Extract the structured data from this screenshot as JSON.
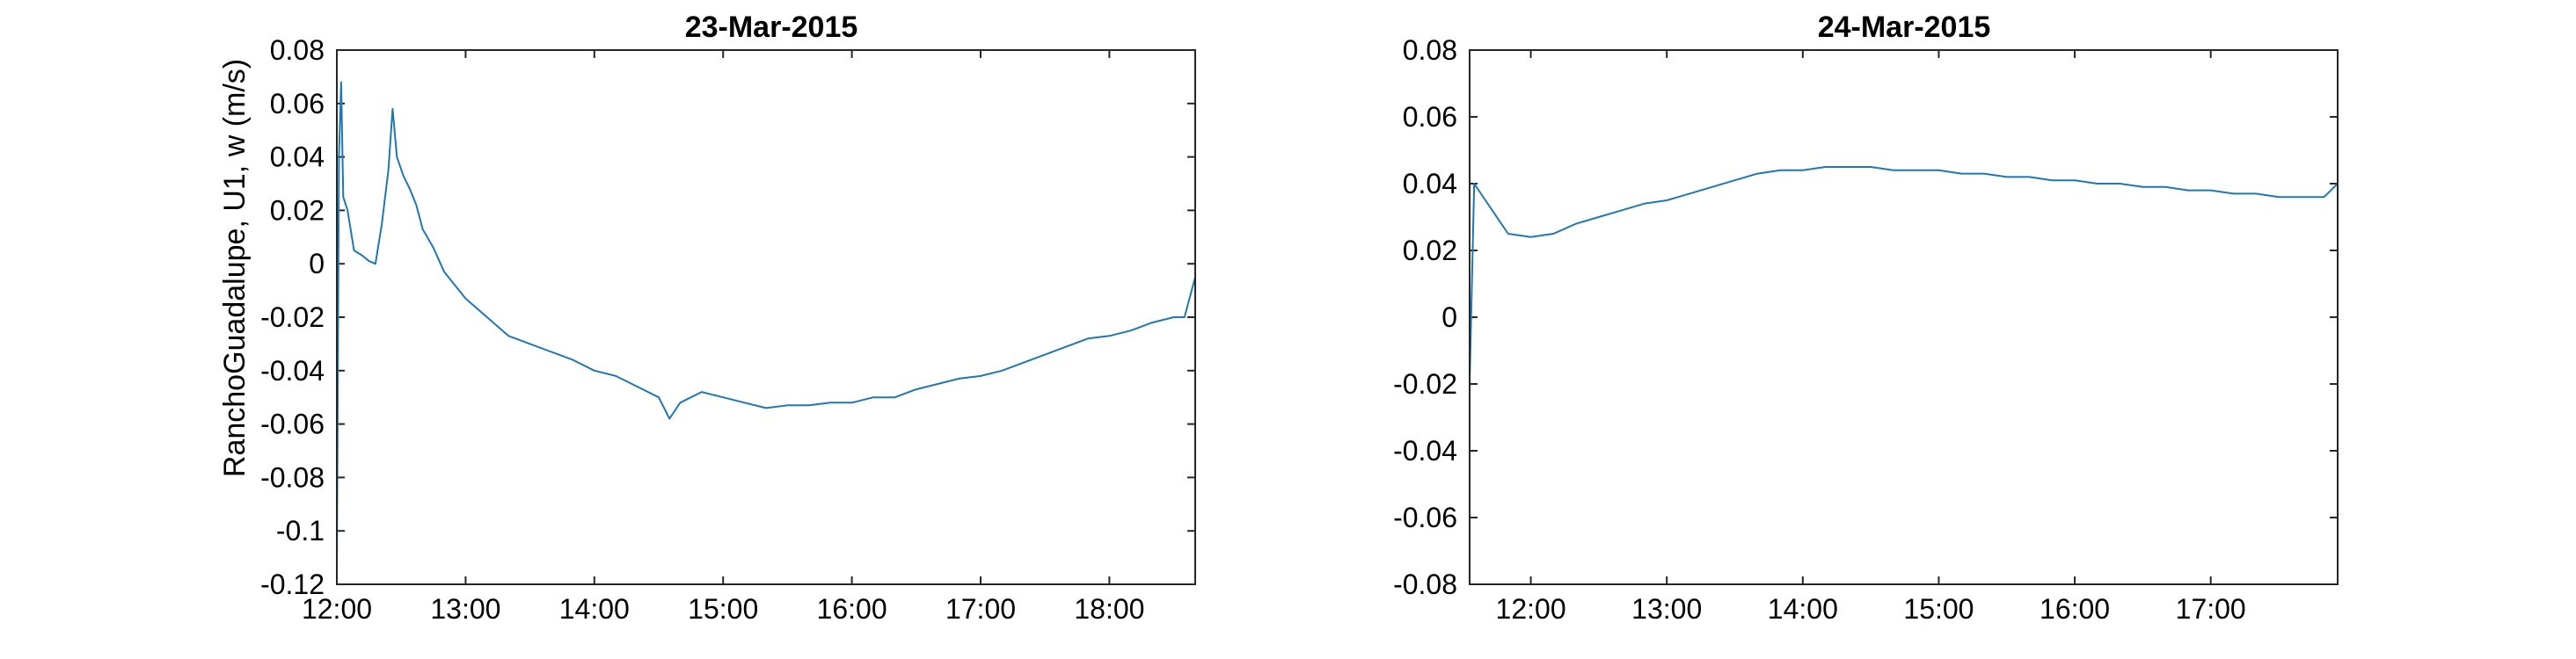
{
  "chart_data": [
    {
      "type": "line",
      "title": "23-Mar-2015",
      "xlabel": "",
      "ylabel": "RanchoGuadalupe, U1, w (m/s)",
      "xlim": [
        "12:00",
        "18:40"
      ],
      "ylim": [
        -0.12,
        0.08
      ],
      "xticks": [
        "12:00",
        "13:00",
        "14:00",
        "15:00",
        "16:00",
        "17:00",
        "18:00"
      ],
      "yticks": [
        "0.08",
        "0.06",
        "0.04",
        "0.02",
        "0",
        "-0.02",
        "-0.04",
        "-0.06",
        "-0.08",
        "-0.1",
        "-0.12"
      ],
      "grid": false,
      "color": "#1f77b4",
      "series": [
        {
          "x": [
            "12:00",
            "12:01",
            "12:02",
            "12:03",
            "12:05",
            "12:08",
            "12:12",
            "12:15",
            "12:18",
            "12:21",
            "12:24",
            "12:26",
            "12:28",
            "12:31",
            "12:34",
            "12:37",
            "12:40",
            "12:45",
            "12:50",
            "12:55",
            "13:00",
            "13:10",
            "13:20",
            "13:30",
            "13:40",
            "13:50",
            "14:00",
            "14:10",
            "14:20",
            "14:30",
            "14:35",
            "14:40",
            "14:50",
            "15:00",
            "15:10",
            "15:20",
            "15:30",
            "15:40",
            "15:50",
            "16:00",
            "16:10",
            "16:20",
            "16:30",
            "16:40",
            "16:50",
            "17:00",
            "17:10",
            "17:20",
            "17:30",
            "17:40",
            "17:50",
            "18:00",
            "18:10",
            "18:20",
            "18:30",
            "18:35",
            "18:40"
          ],
          "y": [
            -0.115,
            0.04,
            0.068,
            0.025,
            0.02,
            0.005,
            0.003,
            0.001,
            0.0,
            0.015,
            0.035,
            0.058,
            0.04,
            0.033,
            0.028,
            0.022,
            0.013,
            0.006,
            -0.003,
            -0.008,
            -0.013,
            -0.02,
            -0.027,
            -0.03,
            -0.033,
            -0.036,
            -0.04,
            -0.042,
            -0.046,
            -0.05,
            -0.058,
            -0.052,
            -0.048,
            -0.05,
            -0.052,
            -0.054,
            -0.053,
            -0.053,
            -0.052,
            -0.052,
            -0.05,
            -0.05,
            -0.047,
            -0.045,
            -0.043,
            -0.042,
            -0.04,
            -0.037,
            -0.034,
            -0.031,
            -0.028,
            -0.027,
            -0.025,
            -0.022,
            -0.02,
            -0.02,
            -0.005
          ]
        }
      ]
    },
    {
      "type": "line",
      "title": "24-Mar-2015",
      "xlabel": "",
      "ylabel": "",
      "xlim": [
        "11:33",
        "17:56"
      ],
      "ylim": [
        -0.08,
        0.08
      ],
      "xticks": [
        "12:00",
        "13:00",
        "14:00",
        "15:00",
        "16:00",
        "17:00"
      ],
      "yticks": [
        "0.08",
        "0.06",
        "0.04",
        "0.02",
        "0",
        "-0.02",
        "-0.04",
        "-0.06",
        "-0.08"
      ],
      "grid": false,
      "color": "#1f77b4",
      "series": [
        {
          "x": [
            "11:33",
            "11:35",
            "11:40",
            "11:50",
            "12:00",
            "12:10",
            "12:20",
            "12:30",
            "12:40",
            "12:50",
            "13:00",
            "13:10",
            "13:20",
            "13:30",
            "13:40",
            "13:50",
            "14:00",
            "14:10",
            "14:20",
            "14:30",
            "14:40",
            "14:50",
            "15:00",
            "15:10",
            "15:20",
            "15:30",
            "15:40",
            "15:50",
            "16:00",
            "16:10",
            "16:20",
            "16:30",
            "16:40",
            "16:50",
            "17:00",
            "17:10",
            "17:20",
            "17:30",
            "17:40",
            "17:50",
            "17:56"
          ],
          "y": [
            -0.02,
            0.04,
            0.035,
            0.025,
            0.024,
            0.025,
            0.028,
            0.03,
            0.032,
            0.034,
            0.035,
            0.037,
            0.039,
            0.041,
            0.043,
            0.044,
            0.044,
            0.045,
            0.045,
            0.045,
            0.044,
            0.044,
            0.044,
            0.043,
            0.043,
            0.042,
            0.042,
            0.041,
            0.041,
            0.04,
            0.04,
            0.039,
            0.039,
            0.038,
            0.038,
            0.037,
            0.037,
            0.036,
            0.036,
            0.036,
            0.04
          ]
        }
      ]
    }
  ]
}
